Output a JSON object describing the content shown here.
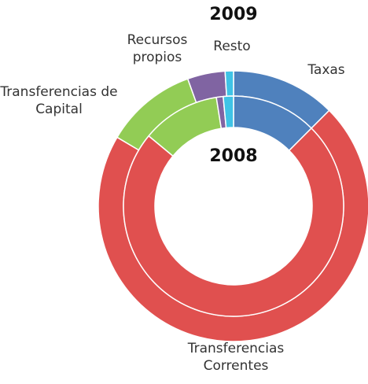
{
  "chart_data": {
    "type": "donut",
    "categories": [
      "Taxas",
      "Transferencias Correntes",
      "Transferencias de Capital",
      "Recursos propios",
      "Resto"
    ],
    "colors": [
      "#4f81bd",
      "#e0504f",
      "#92cc55",
      "#8064a2",
      "#3fc3e6"
    ],
    "series": [
      {
        "name": "2009",
        "values": [
          12.5,
          71,
          11,
          4.5,
          1
        ]
      },
      {
        "name": "2008",
        "values": [
          12.5,
          73.5,
          11.5,
          1,
          1.5
        ]
      }
    ]
  }
}
